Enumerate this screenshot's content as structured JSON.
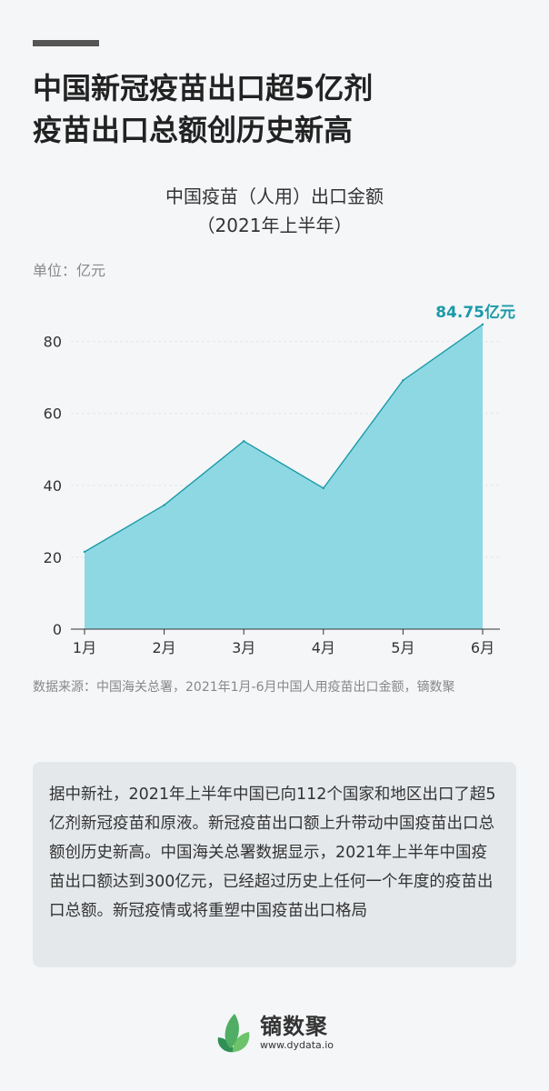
{
  "headline": {
    "line1": "中国新冠疫苗出口超5亿剂",
    "line2": "疫苗出口总额创历史新高"
  },
  "chart_title": {
    "line1": "中国疫苗（人用）出口金额",
    "line2": "（2021年上半年）"
  },
  "unit_label": "单位：亿元",
  "chart_data": {
    "type": "area",
    "title": "中国疫苗（人用）出口金额（2021年上半年）",
    "unit": "亿元",
    "categories": [
      "1月",
      "2月",
      "3月",
      "4月",
      "5月",
      "6月"
    ],
    "values": [
      21.5,
      34.5,
      52.3,
      39.2,
      69.2,
      84.75
    ],
    "yticks": [
      0,
      20,
      40,
      60,
      80
    ],
    "ylim": [
      0,
      88
    ],
    "grid": true,
    "annotation": "84.75亿元",
    "colors": {
      "fill": "#8ed8e4",
      "line": "#1b9aa8",
      "annotation": "#1b9aa8"
    }
  },
  "source": "数据来源：中国海关总署，2021年1月-6月中国人用疫苗出口金额，镝数聚",
  "description": "据中新社，2021年上半年中国已向112个国家和地区出口了超5亿剂新冠疫苗和原液。新冠疫苗出口额上升带动中国疫苗出口总额创历史新高。中国海关总署数据显示，2021年上半年中国疫苗出口额达到300亿元，已经超过历史上任何一个年度的疫苗出口总额。新冠疫情或将重塑中国疫苗出口格局",
  "brand": {
    "name": "镝数聚",
    "url": "www.dydata.io",
    "icon": "leaf-logo-icon"
  }
}
